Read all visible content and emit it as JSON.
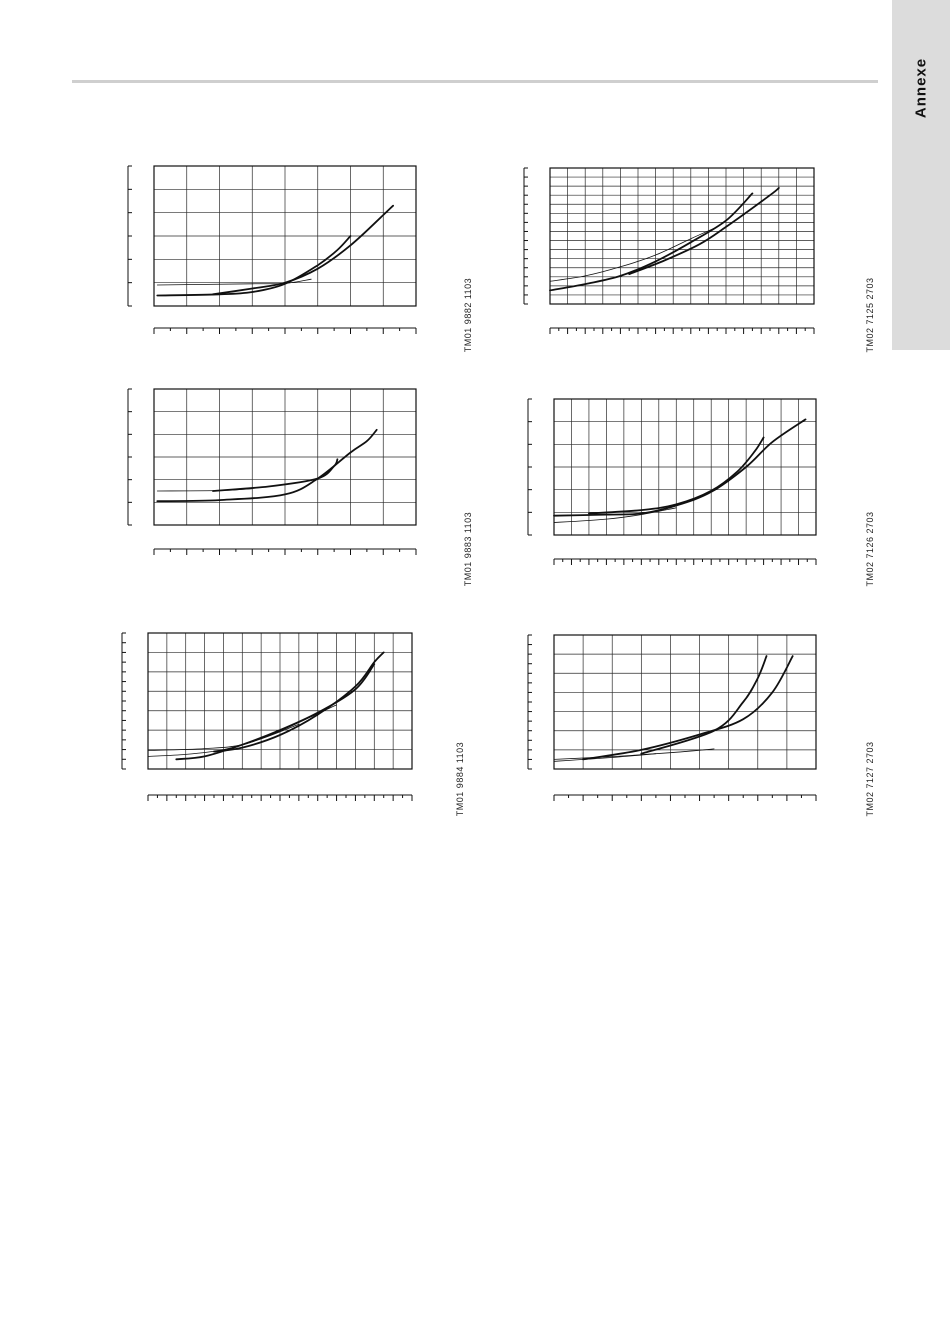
{
  "page": {
    "tab_label": "Annexe"
  },
  "chart_data": [
    {
      "type": "line",
      "code": "TM01 9882 1103",
      "x": {
        "min": 0,
        "max": 8,
        "ticks": 16
      },
      "y": {
        "min": 0,
        "max": 6,
        "ticks": 6
      },
      "grid": {
        "vertical": 8,
        "horizontal": 6
      },
      "series": [
        {
          "weight": "heavy",
          "points": [
            [
              1.8,
              0.5
            ],
            [
              3.0,
              0.75
            ],
            [
              4.0,
              1.0
            ],
            [
              5.0,
              1.6
            ],
            [
              6.0,
              2.6
            ],
            [
              7.0,
              3.9
            ],
            [
              7.3,
              4.3
            ]
          ]
        },
        {
          "weight": "heavy",
          "points": [
            [
              0.1,
              0.45
            ],
            [
              2.0,
              0.5
            ],
            [
              3.0,
              0.6
            ],
            [
              4.0,
              0.95
            ],
            [
              5.0,
              1.75
            ],
            [
              5.6,
              2.4
            ],
            [
              6.0,
              3.0
            ]
          ]
        },
        {
          "weight": "thin",
          "points": [
            [
              0.1,
              0.9
            ],
            [
              3.0,
              0.95
            ],
            [
              4.0,
              0.97
            ],
            [
              4.8,
              1.15
            ]
          ]
        }
      ]
    },
    {
      "type": "line",
      "code": "TM02 7125 2703",
      "x": {
        "min": 0,
        "max": 15,
        "ticks": 30
      },
      "y": {
        "min": 0,
        "max": 15,
        "ticks": 15
      },
      "grid": {
        "vertical": 15,
        "horizontal": 15
      },
      "series": [
        {
          "weight": "heavy",
          "points": [
            [
              0,
              1.5
            ],
            [
              2,
              2.2
            ],
            [
              4,
              3.1
            ],
            [
              6,
              4.7
            ],
            [
              8,
              6.8
            ],
            [
              10,
              9.2
            ],
            [
              11.5,
              12.2
            ]
          ]
        },
        {
          "weight": "heavy",
          "points": [
            [
              4.5,
              3.3
            ],
            [
              6.5,
              4.8
            ],
            [
              8.5,
              6.6
            ],
            [
              10,
              8.5
            ],
            [
              12.5,
              12.0
            ],
            [
              13,
              12.8
            ]
          ]
        },
        {
          "weight": "thin",
          "points": [
            [
              0,
              2.5
            ],
            [
              2,
              3.1
            ],
            [
              4,
              4.1
            ],
            [
              6,
              5.4
            ],
            [
              8,
              7.2
            ],
            [
              9.5,
              8.5
            ]
          ]
        }
      ]
    },
    {
      "type": "line",
      "code": "TM01 9883 1103",
      "x": {
        "min": 0,
        "max": 8,
        "ticks": 16
      },
      "y": {
        "min": 0,
        "max": 6,
        "ticks": 6
      },
      "grid": {
        "vertical": 8,
        "horizontal": 6
      },
      "series": [
        {
          "weight": "heavy",
          "points": [
            [
              0.1,
              1.05
            ],
            [
              2,
              1.1
            ],
            [
              4,
              1.35
            ],
            [
              5,
              2.05
            ],
            [
              6,
              3.2
            ],
            [
              6.5,
              3.7
            ],
            [
              6.8,
              4.2
            ]
          ]
        },
        {
          "weight": "heavy",
          "points": [
            [
              1.8,
              1.5
            ],
            [
              3.5,
              1.7
            ],
            [
              5,
              2.05
            ],
            [
              5.5,
              2.6
            ],
            [
              5.6,
              2.9
            ]
          ]
        },
        {
          "weight": "thin",
          "points": [
            [
              0.1,
              1.5
            ],
            [
              2,
              1.52
            ],
            [
              3,
              1.6
            ]
          ]
        }
      ]
    },
    {
      "type": "line",
      "code": "TM02 7126 2703",
      "x": {
        "min": 0,
        "max": 15,
        "ticks": 30
      },
      "y": {
        "min": 0,
        "max": 6,
        "ticks": 6
      },
      "grid": {
        "vertical": 15,
        "horizontal": 6
      },
      "series": [
        {
          "weight": "heavy",
          "points": [
            [
              2,
              0.95
            ],
            [
              5,
              1.1
            ],
            [
              7,
              1.35
            ],
            [
              9,
              1.95
            ],
            [
              10.5,
              2.8
            ],
            [
              11.5,
              3.7
            ],
            [
              12,
              4.3
            ]
          ]
        },
        {
          "weight": "heavy",
          "points": [
            [
              0,
              0.85
            ],
            [
              3,
              0.9
            ],
            [
              5,
              0.95
            ],
            [
              7,
              1.3
            ],
            [
              9,
              1.9
            ],
            [
              11,
              3.0
            ],
            [
              12.5,
              4.1
            ],
            [
              14.4,
              5.1
            ]
          ]
        },
        {
          "weight": "thin",
          "points": [
            [
              0,
              0.55
            ],
            [
              3,
              0.7
            ],
            [
              5,
              0.9
            ],
            [
              7,
              1.2
            ]
          ]
        }
      ]
    },
    {
      "type": "line",
      "code": "TM01 9884 1103",
      "x": {
        "min": 0,
        "max": 14,
        "ticks": 28
      },
      "y": {
        "min": 0,
        "max": 7,
        "ticks": 14
      },
      "grid": {
        "vertical": 14,
        "horizontal": 7
      },
      "series": [
        {
          "weight": "heavy",
          "points": [
            [
              3.5,
              0.9
            ],
            [
              5,
              1.1
            ],
            [
              7,
              1.75
            ],
            [
              9,
              2.8
            ],
            [
              11,
              4.25
            ],
            [
              12,
              5.5
            ],
            [
              12.5,
              6.0
            ]
          ]
        },
        {
          "weight": "heavy",
          "points": [
            [
              1.5,
              0.5
            ],
            [
              3,
              0.65
            ],
            [
              5,
              1.25
            ],
            [
              7,
              2.0
            ],
            [
              9,
              2.9
            ],
            [
              11,
              4.1
            ],
            [
              12,
              5.4
            ]
          ]
        },
        {
          "weight": "thin",
          "points": [
            [
              0,
              0.95
            ],
            [
              3,
              1.05
            ],
            [
              5,
              1.25
            ],
            [
              7,
              1.95
            ],
            [
              9,
              2.85
            ],
            [
              10,
              3.3
            ]
          ]
        },
        {
          "weight": "thin",
          "points": [
            [
              0,
              0.65
            ],
            [
              2,
              0.75
            ],
            [
              4,
              1.0
            ],
            [
              6,
              1.55
            ],
            [
              8,
              2.3
            ]
          ]
        }
      ]
    },
    {
      "type": "line",
      "code": "TM02 7127 2703",
      "x": {
        "min": 0,
        "max": 9,
        "ticks": 18
      },
      "y": {
        "min": 0,
        "max": 14,
        "ticks": 14
      },
      "grid": {
        "vertical": 9,
        "horizontal": 7
      },
      "series": [
        {
          "weight": "heavy",
          "points": [
            [
              3,
              1.6
            ],
            [
              5.5,
              4.0
            ],
            [
              6.5,
              7.0
            ],
            [
              7,
              9.5
            ],
            [
              7.3,
              11.8
            ]
          ]
        },
        {
          "weight": "heavy",
          "points": [
            [
              1,
              1.0
            ],
            [
              3,
              2.0
            ],
            [
              5,
              3.6
            ],
            [
              6.5,
              5.2
            ],
            [
              7.5,
              8.0
            ],
            [
              8.2,
              11.8
            ]
          ]
        },
        {
          "weight": "thin",
          "points": [
            [
              0,
              1.0
            ],
            [
              2,
              1.3
            ],
            [
              4,
              1.7
            ],
            [
              5.5,
              2.1
            ]
          ]
        },
        {
          "weight": "thin",
          "points": [
            [
              0,
              0.8
            ],
            [
              2,
              1.2
            ],
            [
              3.5,
              1.6
            ]
          ]
        }
      ]
    }
  ]
}
